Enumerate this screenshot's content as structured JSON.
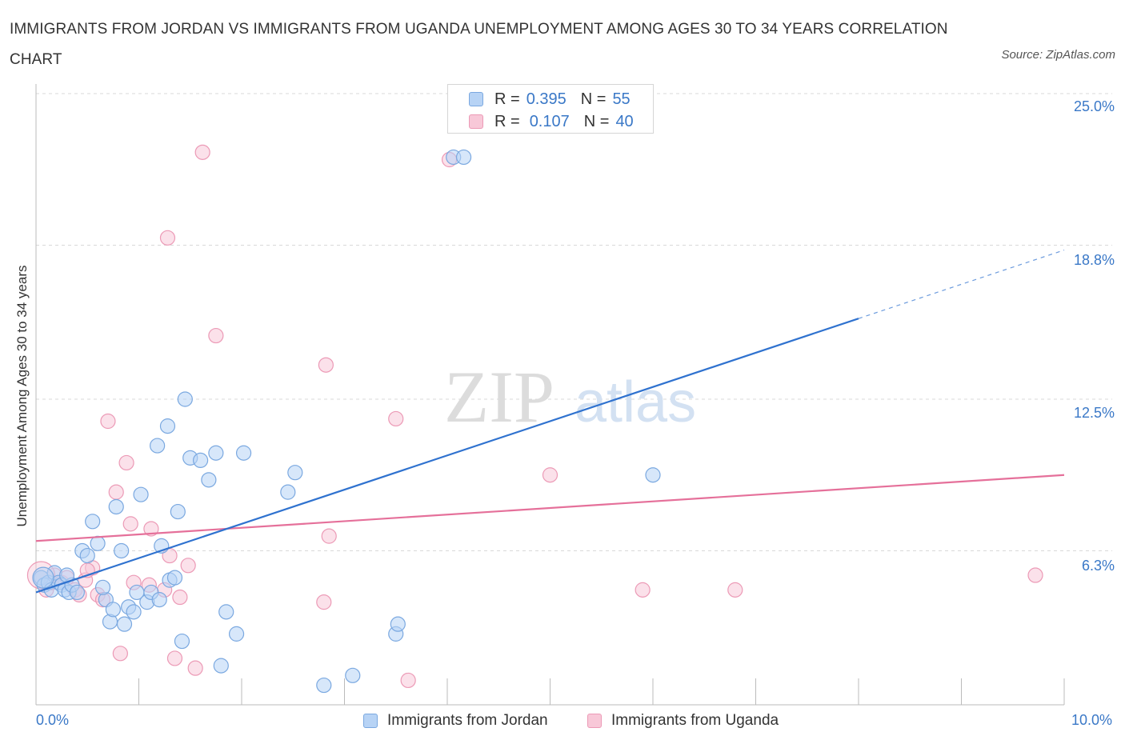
{
  "title": "IMMIGRANTS FROM JORDAN VS IMMIGRANTS FROM UGANDA UNEMPLOYMENT AMONG AGES 30 TO 34 YEARS CORRELATION CHART",
  "source": "Source: ZipAtlas.com",
  "watermark": {
    "zip": "ZIP",
    "atlas": "atlas"
  },
  "legend": {
    "r_label": "R =",
    "n_label": "N =",
    "jordan": {
      "r": "0.395",
      "n": "55"
    },
    "uganda": {
      "r": "0.107",
      "n": "40"
    }
  },
  "colors": {
    "jordan_fill": "#b7d3f5",
    "jordan_stroke": "#7aa8e0",
    "jordan_line": "#2f72cf",
    "uganda_fill": "#f8c8d8",
    "uganda_stroke": "#ec9ab6",
    "uganda_line": "#e5709a",
    "tick_text": "#3a78c7",
    "grid": "#d8d8d8"
  },
  "chart_data": {
    "type": "scatter",
    "title": "IMMIGRANTS FROM JORDAN VS IMMIGRANTS FROM UGANDA UNEMPLOYMENT AMONG AGES 30 TO 34 YEARS CORRELATION CHART",
    "xlabel": "",
    "ylabel": "Unemployment Among Ages 30 to 34 years",
    "xlim": [
      0,
      10
    ],
    "ylim": [
      0,
      25
    ],
    "x_tick_labels": [
      "0.0%",
      "10.0%"
    ],
    "y_ticks": [
      6.3,
      12.5,
      18.8,
      25.0
    ],
    "y_tick_labels": [
      "6.3%",
      "12.5%",
      "18.8%",
      "25.0%"
    ],
    "grid": true,
    "series": [
      {
        "name": "Immigrants from Jordan",
        "r": 0.395,
        "n": 55,
        "trend": {
          "x": [
            0,
            8.0
          ],
          "y": [
            4.6,
            15.8
          ],
          "dashed_to": [
            10.0,
            18.6
          ]
        },
        "points": [
          [
            0.05,
            5.2
          ],
          [
            0.08,
            4.9
          ],
          [
            0.12,
            5.0
          ],
          [
            0.15,
            4.7
          ],
          [
            0.18,
            5.4
          ],
          [
            0.22,
            5.0
          ],
          [
            0.25,
            4.9
          ],
          [
            0.28,
            4.7
          ],
          [
            0.32,
            4.6
          ],
          [
            0.35,
            4.9
          ],
          [
            0.45,
            6.3
          ],
          [
            0.5,
            6.1
          ],
          [
            0.55,
            7.5
          ],
          [
            0.6,
            6.6
          ],
          [
            0.68,
            4.3
          ],
          [
            0.72,
            3.4
          ],
          [
            0.75,
            3.9
          ],
          [
            0.78,
            8.1
          ],
          [
            0.83,
            6.3
          ],
          [
            0.86,
            3.3
          ],
          [
            0.9,
            4.0
          ],
          [
            0.95,
            3.8
          ],
          [
            0.98,
            4.6
          ],
          [
            1.02,
            8.6
          ],
          [
            1.08,
            4.2
          ],
          [
            1.12,
            4.6
          ],
          [
            1.18,
            10.6
          ],
          [
            1.2,
            4.3
          ],
          [
            1.22,
            6.5
          ],
          [
            1.28,
            11.4
          ],
          [
            1.3,
            5.1
          ],
          [
            1.35,
            5.2
          ],
          [
            1.38,
            7.9
          ],
          [
            1.42,
            2.6
          ],
          [
            1.45,
            12.5
          ],
          [
            1.5,
            10.1
          ],
          [
            1.6,
            10.0
          ],
          [
            1.68,
            9.2
          ],
          [
            1.75,
            10.3
          ],
          [
            1.8,
            1.6
          ],
          [
            1.85,
            3.8
          ],
          [
            1.95,
            2.9
          ],
          [
            2.02,
            10.3
          ],
          [
            2.45,
            8.7
          ],
          [
            2.52,
            9.5
          ],
          [
            2.8,
            0.8
          ],
          [
            3.08,
            1.2
          ],
          [
            3.5,
            2.9
          ],
          [
            3.52,
            3.3
          ],
          [
            4.06,
            22.4
          ],
          [
            4.16,
            22.4
          ],
          [
            6.0,
            9.4
          ],
          [
            0.3,
            5.3
          ],
          [
            0.4,
            4.6
          ],
          [
            0.65,
            4.8
          ]
        ]
      },
      {
        "name": "Immigrants from Uganda",
        "r": 0.107,
        "n": 40,
        "trend": {
          "x": [
            0,
            10.0
          ],
          "y": [
            6.7,
            9.4
          ]
        },
        "points": [
          [
            0.05,
            5.2
          ],
          [
            0.1,
            4.7
          ],
          [
            0.15,
            5.0
          ],
          [
            0.18,
            5.3
          ],
          [
            0.25,
            5.0
          ],
          [
            0.3,
            5.2
          ],
          [
            0.38,
            4.7
          ],
          [
            0.42,
            4.5
          ],
          [
            0.48,
            5.1
          ],
          [
            0.55,
            5.6
          ],
          [
            0.6,
            4.5
          ],
          [
            0.65,
            4.3
          ],
          [
            0.7,
            11.6
          ],
          [
            0.78,
            8.7
          ],
          [
            0.82,
            2.1
          ],
          [
            0.88,
            9.9
          ],
          [
            0.92,
            7.4
          ],
          [
            1.1,
            4.9
          ],
          [
            1.12,
            7.2
          ],
          [
            1.25,
            4.7
          ],
          [
            1.28,
            19.1
          ],
          [
            1.3,
            6.1
          ],
          [
            1.35,
            1.9
          ],
          [
            1.4,
            4.4
          ],
          [
            1.48,
            5.7
          ],
          [
            1.55,
            1.5
          ],
          [
            1.62,
            22.6
          ],
          [
            1.75,
            15.1
          ],
          [
            2.8,
            4.2
          ],
          [
            2.82,
            13.9
          ],
          [
            2.85,
            6.9
          ],
          [
            3.5,
            11.7
          ],
          [
            3.62,
            1.0
          ],
          [
            4.02,
            22.3
          ],
          [
            5.0,
            9.4
          ],
          [
            5.9,
            4.7
          ],
          [
            6.8,
            4.7
          ],
          [
            9.72,
            5.3
          ],
          [
            0.95,
            5.0
          ],
          [
            0.5,
            5.5
          ]
        ]
      }
    ]
  },
  "bottom_legend": {
    "jordan_label": "Immigrants from Jordan",
    "uganda_label": "Immigrants from Uganda"
  }
}
